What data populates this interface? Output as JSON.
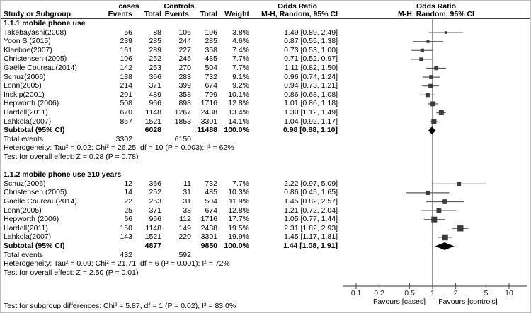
{
  "table": {
    "header": {
      "cases_group": "cases",
      "controls_group": "Controls",
      "study": "Study or Subgroup",
      "events": "Events",
      "total": "Total",
      "weight": "Weight",
      "odds_ratio": "Odds Ratio",
      "method": "M-H, Random, 95% CI"
    }
  },
  "chart_data": {
    "type": "scatter",
    "subtype": "forest-plot",
    "title": "Odds Ratio",
    "method_label": "M-H, Random, 95% CI",
    "x_scale": "log10",
    "x_range": [
      0.1,
      10
    ],
    "x_ticks": [
      0.1,
      0.2,
      0.5,
      1,
      2,
      5,
      10
    ],
    "vline_at": 1,
    "x_axis_left_label": "Favours [cases]",
    "x_axis_right_label": "Favours [controls]",
    "subgroups": [
      {
        "label": "1.1.1 mobile phone use",
        "studies": [
          {
            "name": "Takebayashi(2008)",
            "events_cases": 56,
            "total_cases": 88,
            "events_controls": 106,
            "total_controls": 196,
            "weight": "3.8%",
            "weight_value": 3.8,
            "or": 1.49,
            "ci_low": 0.89,
            "ci_high": 2.49,
            "or_text": "1.49 [0.89, 2.49]"
          },
          {
            "name": "Yoon S (2015)",
            "events_cases": 239,
            "total_cases": 285,
            "events_controls": 244,
            "total_controls": 285,
            "weight": "4.6%",
            "weight_value": 4.6,
            "or": 0.87,
            "ci_low": 0.55,
            "ci_high": 1.38,
            "or_text": "0.87 [0.55, 1.38]"
          },
          {
            "name": "Klaeboe(2007)",
            "events_cases": 161,
            "total_cases": 289,
            "events_controls": 227,
            "total_controls": 358,
            "weight": "7.4%",
            "weight_value": 7.4,
            "or": 0.73,
            "ci_low": 0.53,
            "ci_high": 1.0,
            "or_text": "0.73 [0.53, 1.00]"
          },
          {
            "name": "Christensen (2005)",
            "events_cases": 106,
            "total_cases": 252,
            "events_controls": 245,
            "total_controls": 485,
            "weight": "7.7%",
            "weight_value": 7.7,
            "or": 0.71,
            "ci_low": 0.52,
            "ci_high": 0.97,
            "or_text": "0.71 [0.52, 0.97]"
          },
          {
            "name": "Gaëlle Coureau(2014)",
            "events_cases": 142,
            "total_cases": 253,
            "events_controls": 270,
            "total_controls": 504,
            "weight": "7.7%",
            "weight_value": 7.7,
            "or": 1.11,
            "ci_low": 0.82,
            "ci_high": 1.5,
            "or_text": "1.11 [0.82, 1.50]"
          },
          {
            "name": "Schuz(2006)",
            "events_cases": 138,
            "total_cases": 366,
            "events_controls": 283,
            "total_controls": 732,
            "weight": "9.1%",
            "weight_value": 9.1,
            "or": 0.96,
            "ci_low": 0.74,
            "ci_high": 1.24,
            "or_text": "0.96 [0.74, 1.24]"
          },
          {
            "name": "Lonn(2005)",
            "events_cases": 214,
            "total_cases": 371,
            "events_controls": 399,
            "total_controls": 674,
            "weight": "9.2%",
            "weight_value": 9.2,
            "or": 0.94,
            "ci_low": 0.73,
            "ci_high": 1.21,
            "or_text": "0.94 [0.73, 1.21]"
          },
          {
            "name": "Inskip(2001)",
            "events_cases": 201,
            "total_cases": 489,
            "events_controls": 358,
            "total_controls": 799,
            "weight": "10.1%",
            "weight_value": 10.1,
            "or": 0.86,
            "ci_low": 0.68,
            "ci_high": 1.08,
            "or_text": "0.86 [0.68, 1.08]"
          },
          {
            "name": "Hepworth (2006)",
            "events_cases": 508,
            "total_cases": 966,
            "events_controls": 898,
            "total_controls": 1716,
            "weight": "12.8%",
            "weight_value": 12.8,
            "or": 1.01,
            "ci_low": 0.86,
            "ci_high": 1.18,
            "or_text": "1.01 [0.86, 1.18]"
          },
          {
            "name": "Hardell(2011)",
            "events_cases": 670,
            "total_cases": 1148,
            "events_controls": 1267,
            "total_controls": 2438,
            "weight": "13.4%",
            "weight_value": 13.4,
            "or": 1.3,
            "ci_low": 1.12,
            "ci_high": 1.49,
            "or_text": "1.30 [1.12, 1.49]"
          },
          {
            "name": "Lahkola(2007)",
            "events_cases": 867,
            "total_cases": 1521,
            "events_controls": 1853,
            "total_controls": 3301,
            "weight": "14.1%",
            "weight_value": 14.1,
            "or": 1.04,
            "ci_low": 0.92,
            "ci_high": 1.17,
            "or_text": "1.04 [0.92, 1.17]"
          }
        ],
        "subtotal": {
          "label": "Subtotal (95% CI)",
          "total_cases": 6028,
          "total_controls": 11488,
          "weight": "100.0%",
          "or": 0.98,
          "ci_low": 0.88,
          "ci_high": 1.1,
          "or_text": "0.98 [0.88, 1.10]"
        },
        "total_events": {
          "label": "Total events",
          "cases": 3302,
          "controls": 6150
        },
        "heterogeneity": "Heterogeneity: Tau² = 0.02; Chi² = 26.25, df = 10 (P = 0.003); I² = 62%",
        "overall_effect": "Test for overall effect: Z = 0.28 (P = 0.78)"
      },
      {
        "label": "1.1.2 mobile phone use ≥10 years",
        "studies": [
          {
            "name": "Schuz(2006)",
            "events_cases": 12,
            "total_cases": 366,
            "events_controls": 11,
            "total_controls": 732,
            "weight": "7.7%",
            "weight_value": 7.7,
            "or": 2.22,
            "ci_low": 0.97,
            "ci_high": 5.09,
            "or_text": "2.22 [0.97, 5.09]"
          },
          {
            "name": "Christensen (2005)",
            "events_cases": 14,
            "total_cases": 252,
            "events_controls": 31,
            "total_controls": 485,
            "weight": "10.3%",
            "weight_value": 10.3,
            "or": 0.86,
            "ci_low": 0.45,
            "ci_high": 1.65,
            "or_text": "0.86 [0.45, 1.65]"
          },
          {
            "name": "Gaëlle Coureau(2014)",
            "events_cases": 22,
            "total_cases": 253,
            "events_controls": 31,
            "total_controls": 504,
            "weight": "11.9%",
            "weight_value": 11.9,
            "or": 1.45,
            "ci_low": 0.82,
            "ci_high": 2.57,
            "or_text": "1.45 [0.82, 2.57]"
          },
          {
            "name": "Lonn(2005)",
            "events_cases": 25,
            "total_cases": 371,
            "events_controls": 38,
            "total_controls": 674,
            "weight": "12.8%",
            "weight_value": 12.8,
            "or": 1.21,
            "ci_low": 0.72,
            "ci_high": 2.04,
            "or_text": "1.21 [0.72, 2.04]"
          },
          {
            "name": "Hepworth (2006)",
            "events_cases": 66,
            "total_cases": 966,
            "events_controls": 112,
            "total_controls": 1716,
            "weight": "17.7%",
            "weight_value": 17.7,
            "or": 1.05,
            "ci_low": 0.77,
            "ci_high": 1.44,
            "or_text": "1.05 [0.77, 1.44]"
          },
          {
            "name": "Hardell(2011)",
            "events_cases": 150,
            "total_cases": 1148,
            "events_controls": 149,
            "total_controls": 2438,
            "weight": "19.5%",
            "weight_value": 19.5,
            "or": 2.31,
            "ci_low": 1.82,
            "ci_high": 2.93,
            "or_text": "2.31 [1.82, 2.93]"
          },
          {
            "name": "Lahkola(2007)",
            "events_cases": 143,
            "total_cases": 1521,
            "events_controls": 220,
            "total_controls": 3301,
            "weight": "19.9%",
            "weight_value": 19.9,
            "or": 1.45,
            "ci_low": 1.17,
            "ci_high": 1.81,
            "or_text": "1.45 [1.17, 1.81]"
          }
        ],
        "subtotal": {
          "label": "Subtotal (95% CI)",
          "total_cases": 4877,
          "total_controls": 9850,
          "weight": "100.0%",
          "or": 1.44,
          "ci_low": 1.08,
          "ci_high": 1.91,
          "or_text": "1.44 [1.08, 1.91]"
        },
        "total_events": {
          "label": "Total events",
          "cases": 432,
          "controls": 592
        },
        "heterogeneity": "Heterogeneity: Tau² = 0.09; Chi² = 21.71, df = 6 (P = 0.001); I² = 72%",
        "overall_effect": "Test for overall effect: Z = 2.50 (P = 0.01)"
      }
    ],
    "footer": "Test for subgroup differences: Chi² = 5.87, df = 1 (P = 0.02), I² = 83.0%"
  }
}
